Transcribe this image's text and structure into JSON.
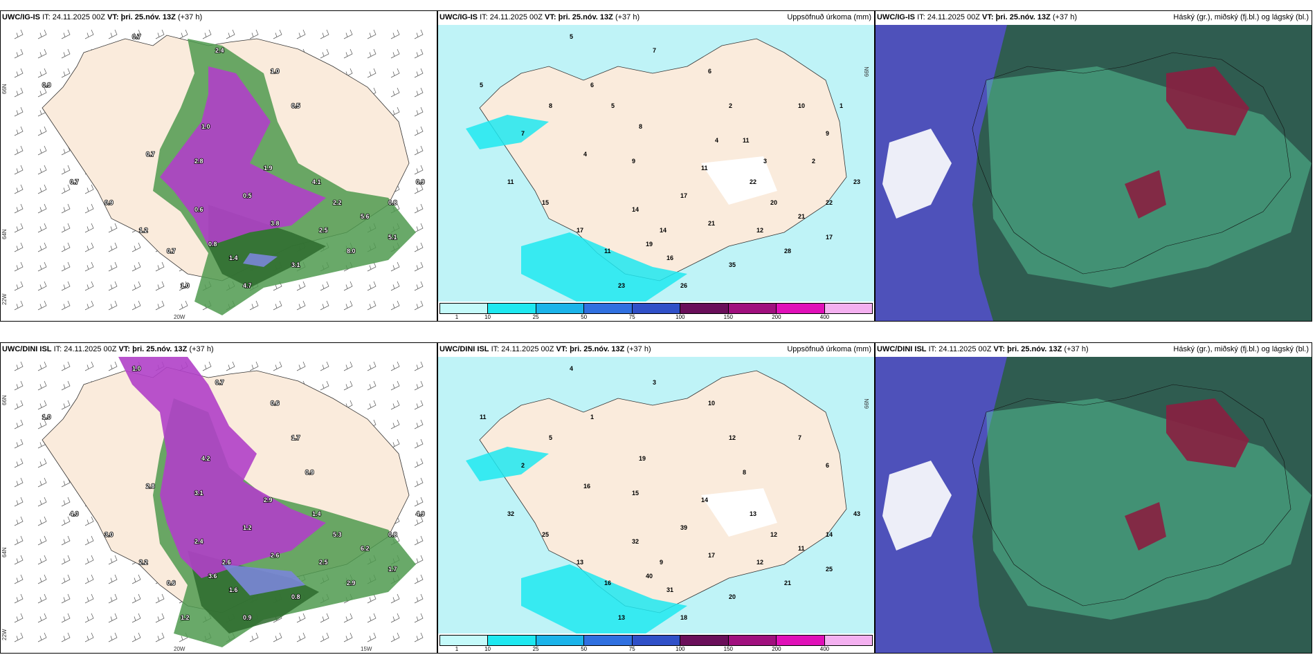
{
  "panels": [
    {
      "model": "UWC/IG-IS",
      "init": "IT: 24.11.2025 00Z",
      "vt_label": "VT:",
      "vt_value": "þri. 25.nóv. 13Z",
      "lead": "(+37 h)",
      "product": "",
      "axis_labels": [
        "20W",
        "66N",
        "64N",
        "22W"
      ],
      "values": [
        "0.7",
        "2.4",
        "1.0",
        "0.9",
        "0.5",
        "1.0",
        "0.7",
        "2.8",
        "1.9",
        "4.1",
        "0.5",
        "0.6",
        "3.8",
        "2.5",
        "0.8",
        "1.4",
        "3.1",
        "8.0",
        "5.1",
        "4.7",
        "1.0",
        "0.8",
        "5.6",
        "2.2",
        "0.9",
        "0.7",
        "0.9",
        "1.2",
        "0.7"
      ]
    },
    {
      "model": "UWC/IG-IS",
      "init": "IT: 24.11.2025 00Z",
      "vt_label": "VT:",
      "vt_value": "þri. 25.nóv. 13Z",
      "lead": "(+37 h)",
      "product": "Uppsöfnuð úrkoma (mm)",
      "axis_labels": [
        "66N"
      ],
      "values": [
        "5",
        "7",
        "6",
        "5",
        "2",
        "8",
        "4",
        "9",
        "11",
        "22",
        "17",
        "14",
        "21",
        "12",
        "19",
        "16",
        "35",
        "28",
        "17",
        "26",
        "23",
        "22",
        "21",
        "20",
        "23",
        "11",
        "15",
        "17",
        "11",
        "14",
        "11",
        "10",
        "9",
        "8",
        "7",
        "6",
        "5",
        "4",
        "3",
        "2",
        "1"
      ]
    },
    {
      "model": "UWC/IG-IS",
      "init": "IT: 24.11.2025 00Z",
      "vt_label": "VT:",
      "vt_value": "þri. 25.nóv. 13Z",
      "lead": "(+37 h)",
      "product": "Háský (gr.), miðský (fj.bl.) og lágský (bl.)",
      "axis_labels": [],
      "values": []
    },
    {
      "model": "UWC/DINI ISL",
      "init": "IT: 24.11.2025 00Z",
      "vt_label": "VT:",
      "vt_value": "þri. 25.nóv. 13Z",
      "lead": "(+37 h)",
      "product": "",
      "axis_labels": [
        "20W",
        "15W",
        "66N",
        "64N",
        "22W"
      ],
      "values": [
        "1.0",
        "0.7",
        "0.6",
        "1.0",
        "1.7",
        "4.2",
        "2.8",
        "3.1",
        "2.9",
        "1.4",
        "1.2",
        "2.4",
        "2.6",
        "2.5",
        "3.6",
        "1.6",
        "0.8",
        "2.9",
        "1.7",
        "0.9",
        "1.2",
        "0.8",
        "6.2",
        "5.3",
        "4.9",
        "4.0",
        "3.0",
        "2.2",
        "0.6",
        "2.6",
        "0.9"
      ]
    },
    {
      "model": "UWC/DINI ISL",
      "init": "IT: 24.11.2025 00Z",
      "vt_label": "VT:",
      "vt_value": "þri. 25.nóv. 13Z",
      "lead": "(+37 h)",
      "product": "Uppsöfnuð úrkoma (mm)",
      "axis_labels": [
        "66N"
      ],
      "values": [
        "4",
        "3",
        "10",
        "11",
        "12",
        "19",
        "16",
        "15",
        "14",
        "13",
        "39",
        "32",
        "17",
        "12",
        "40",
        "31",
        "20",
        "21",
        "25",
        "18",
        "13",
        "14",
        "11",
        "12",
        "43",
        "32",
        "25",
        "13",
        "16",
        "9",
        "8",
        "7",
        "6",
        "5",
        "2",
        "1"
      ]
    },
    {
      "model": "UWC/DINI ISL",
      "init": "IT: 24.11.2025 00Z",
      "vt_label": "VT:",
      "vt_value": "þri. 25.nóv. 13Z",
      "lead": "(+37 h)",
      "product": "Háský (gr.), miðský (fj.bl.) og lágský (bl.)",
      "axis_labels": [],
      "values": []
    }
  ],
  "legend": {
    "ticks": [
      "1",
      "10",
      "25",
      "50",
      "75",
      "100",
      "150",
      "200",
      "400"
    ],
    "colors": [
      "#c4fafa",
      "#1fe8f0",
      "#1bb4ea",
      "#3070e0",
      "#3050c8",
      "#6a0f5a",
      "#a0107e",
      "#e010b8",
      "#f4b0f0"
    ]
  },
  "colors": {
    "land": "#faebdc",
    "precip_light": "#bff3f7",
    "green_dark": "#2e6b2e",
    "magenta": "#b040c8",
    "cloud_bg": "#2f5c50",
    "cloud_blue": "#5050c0",
    "cloud_red": "#8a1f40"
  }
}
